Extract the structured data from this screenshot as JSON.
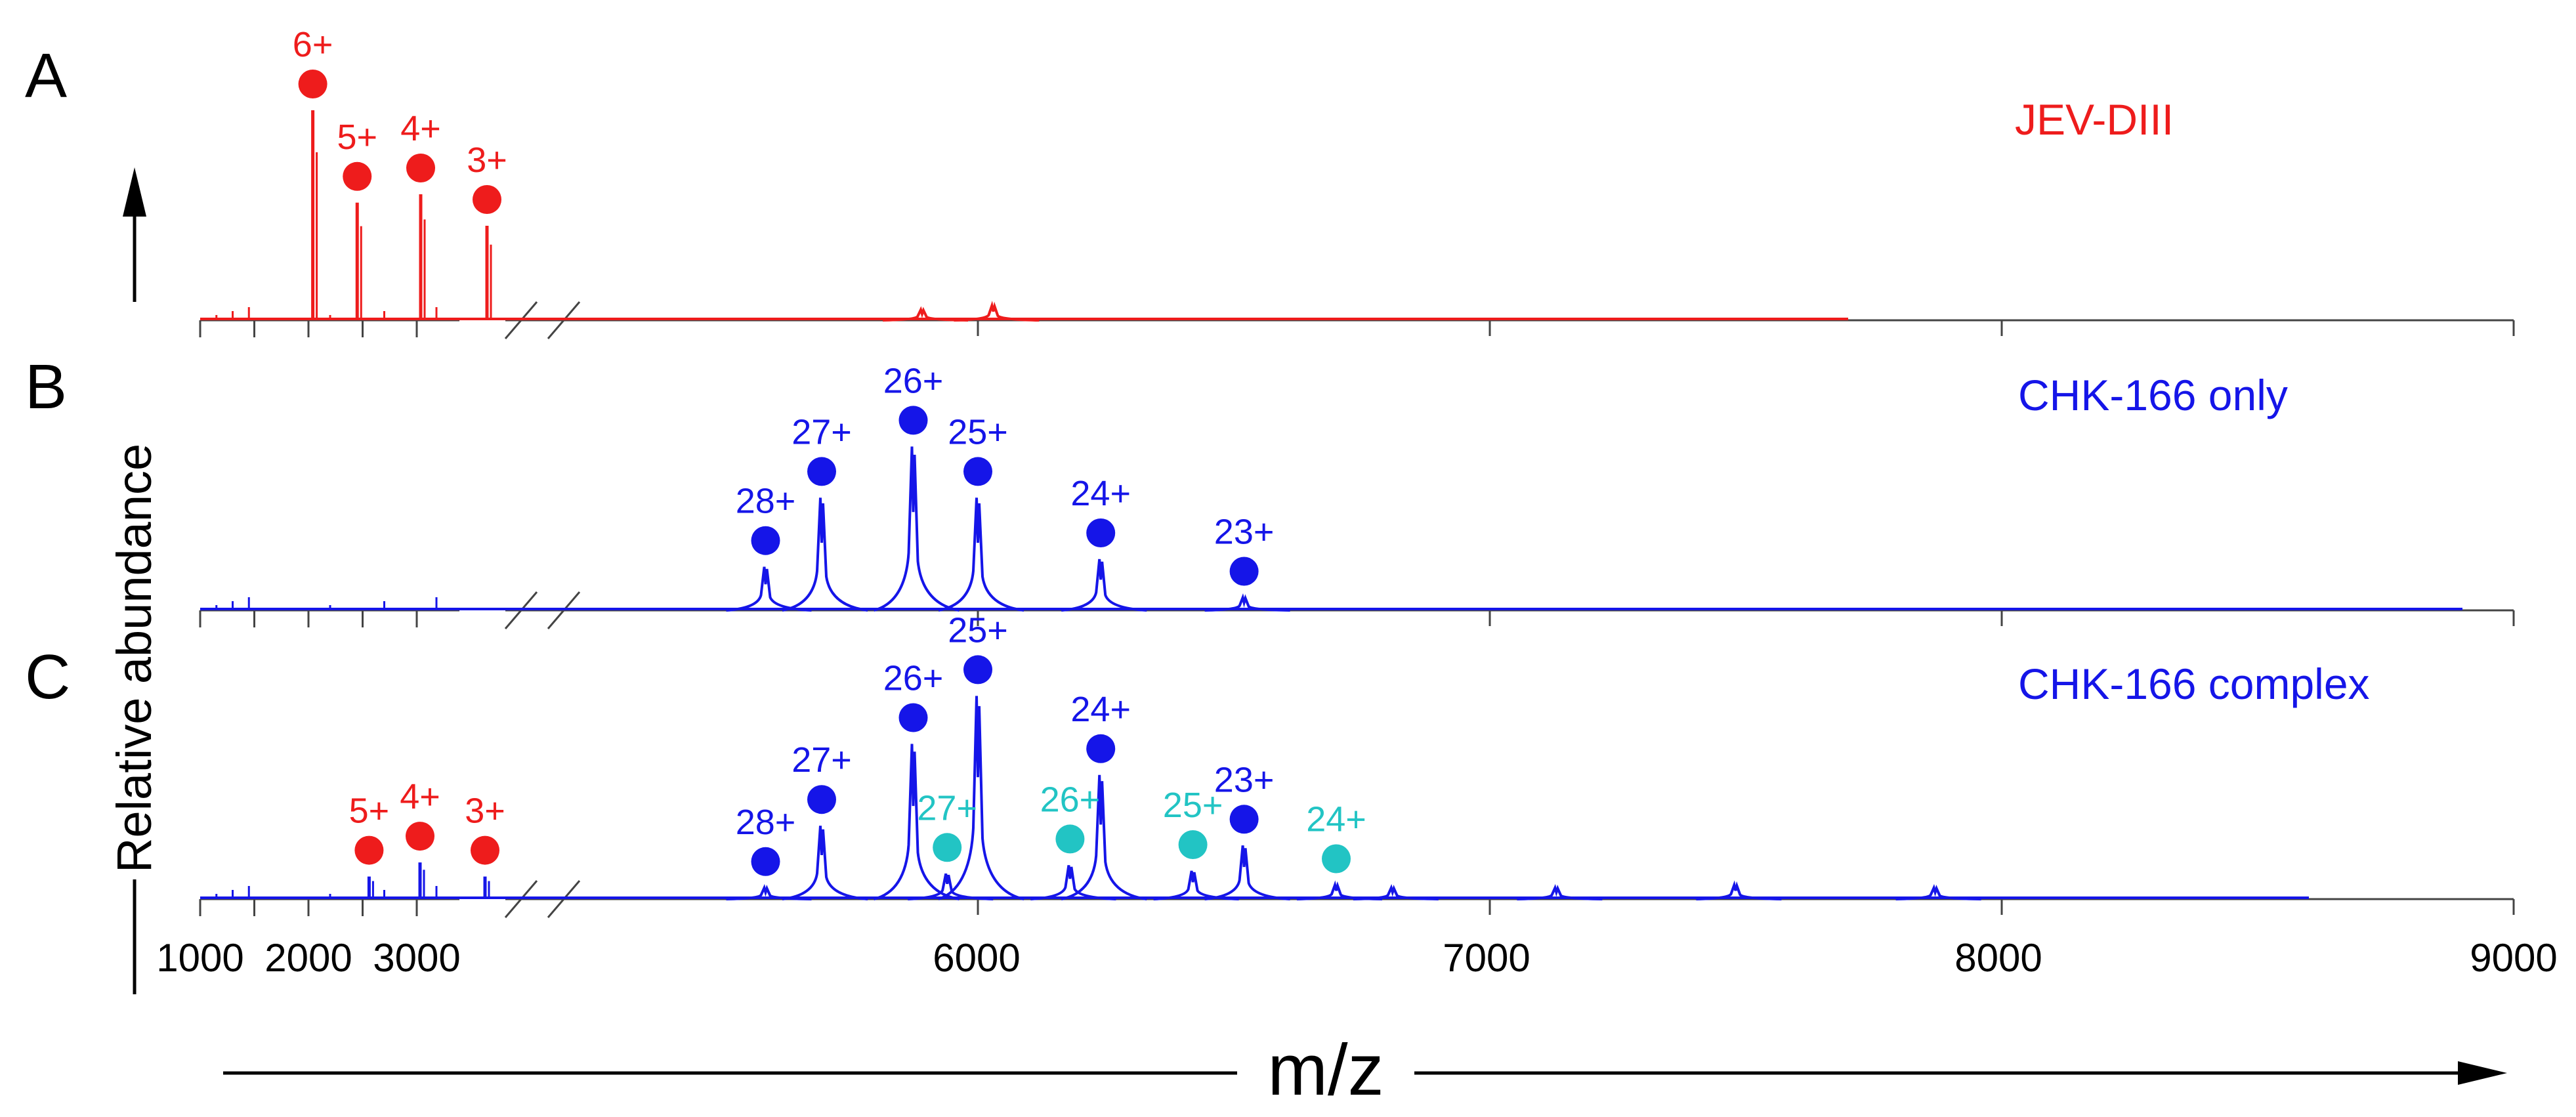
{
  "colors": {
    "red": "#ee1c1c",
    "blue": "#1515e8",
    "cyan": "#22c4c4",
    "black": "#000000",
    "axis_gray": "#444444"
  },
  "axes": {
    "ylabel": "Relative abundance",
    "xlabel": "m/z",
    "x_break": "axis broken between 3000 and ~4400 m/z (drawn as //)",
    "low_segment_ticks": [
      1000,
      2000,
      3000
    ],
    "high_segment_ticks": [
      6000,
      7000,
      8000,
      9000
    ]
  },
  "chart_data": [
    {
      "type": "line",
      "panel": "A",
      "title": "JEV-DIII",
      "color_key": "red",
      "xlabel": "m/z",
      "ylabel": "Relative abundance",
      "xlim": [
        1000,
        9000
      ],
      "ylim": [
        0,
        100
      ],
      "peaks": [
        {
          "label": "6+",
          "mz": 2040,
          "height": 100,
          "marker": "red"
        },
        {
          "label": "5+",
          "mz": 2450,
          "height": 56,
          "marker": "red"
        },
        {
          "label": "4+",
          "mz": 3060,
          "height": 60,
          "marker": "red"
        },
        {
          "label": "3+",
          "mz": 4070,
          "height": 45,
          "marker": "red"
        }
      ],
      "minor_peaks": [
        {
          "mz": 5800,
          "height": 5
        },
        {
          "mz": 6030,
          "height": 7
        }
      ],
      "trace_end_mz": 7700
    },
    {
      "type": "line",
      "panel": "B",
      "title": "CHK-166 only",
      "color_key": "blue",
      "xlabel": "m/z",
      "ylabel": "Relative abundance",
      "xlim": [
        1000,
        9000
      ],
      "ylim": [
        0,
        100
      ],
      "peaks": [
        {
          "label": "28+",
          "mz": 5270,
          "height": 17,
          "marker": "blue"
        },
        {
          "label": "27+",
          "mz": 5460,
          "height": 44,
          "marker": "blue"
        },
        {
          "label": "26+",
          "mz": 5770,
          "height": 64,
          "marker": "blue"
        },
        {
          "label": "25+",
          "mz": 6000,
          "height": 44,
          "marker": "blue"
        },
        {
          "label": "24+",
          "mz": 6240,
          "height": 20,
          "marker": "blue"
        },
        {
          "label": "23+",
          "mz": 6520,
          "height": 5,
          "marker": "blue"
        }
      ],
      "trace_end_mz": 8900
    },
    {
      "type": "line",
      "panel": "C",
      "title": "CHK-166 complex",
      "color_key": "blue",
      "xlabel": "m/z",
      "ylabel": "Relative abundance",
      "xlim": [
        1000,
        9000
      ],
      "ylim": [
        0,
        100
      ],
      "peaks": [
        {
          "label": "5+",
          "mz": 2560,
          "height": 8,
          "marker": "red"
        },
        {
          "label": "4+",
          "mz": 3050,
          "height": 13,
          "marker": "red"
        },
        {
          "label": "3+",
          "mz": 4040,
          "height": 8,
          "marker": "red"
        },
        {
          "label": "28+",
          "mz": 5270,
          "height": 4,
          "marker": "blue"
        },
        {
          "label": "27+",
          "mz": 5460,
          "height": 26,
          "marker": "blue"
        },
        {
          "label": "26+",
          "mz": 5770,
          "height": 55,
          "marker": "blue"
        },
        {
          "label": "25+",
          "mz": 6000,
          "height": 72,
          "marker": "blue"
        },
        {
          "label": "24+",
          "mz": 6240,
          "height": 44,
          "marker": "blue"
        },
        {
          "label": "23+",
          "mz": 6520,
          "height": 19,
          "marker": "blue"
        },
        {
          "label": "27+",
          "mz": 5940,
          "height": 9,
          "marker": "cyan"
        },
        {
          "label": "26+",
          "mz": 6180,
          "height": 12,
          "marker": "cyan"
        },
        {
          "label": "25+",
          "mz": 6420,
          "height": 10,
          "marker": "cyan"
        },
        {
          "label": "24+",
          "mz": 6700,
          "height": 5,
          "marker": "cyan"
        }
      ],
      "minor_peaks": [
        {
          "mz": 6810,
          "height": 4
        },
        {
          "mz": 7130,
          "height": 4
        },
        {
          "mz": 7480,
          "height": 5
        },
        {
          "mz": 7870,
          "height": 4
        }
      ],
      "trace_end_mz": 8600
    }
  ]
}
